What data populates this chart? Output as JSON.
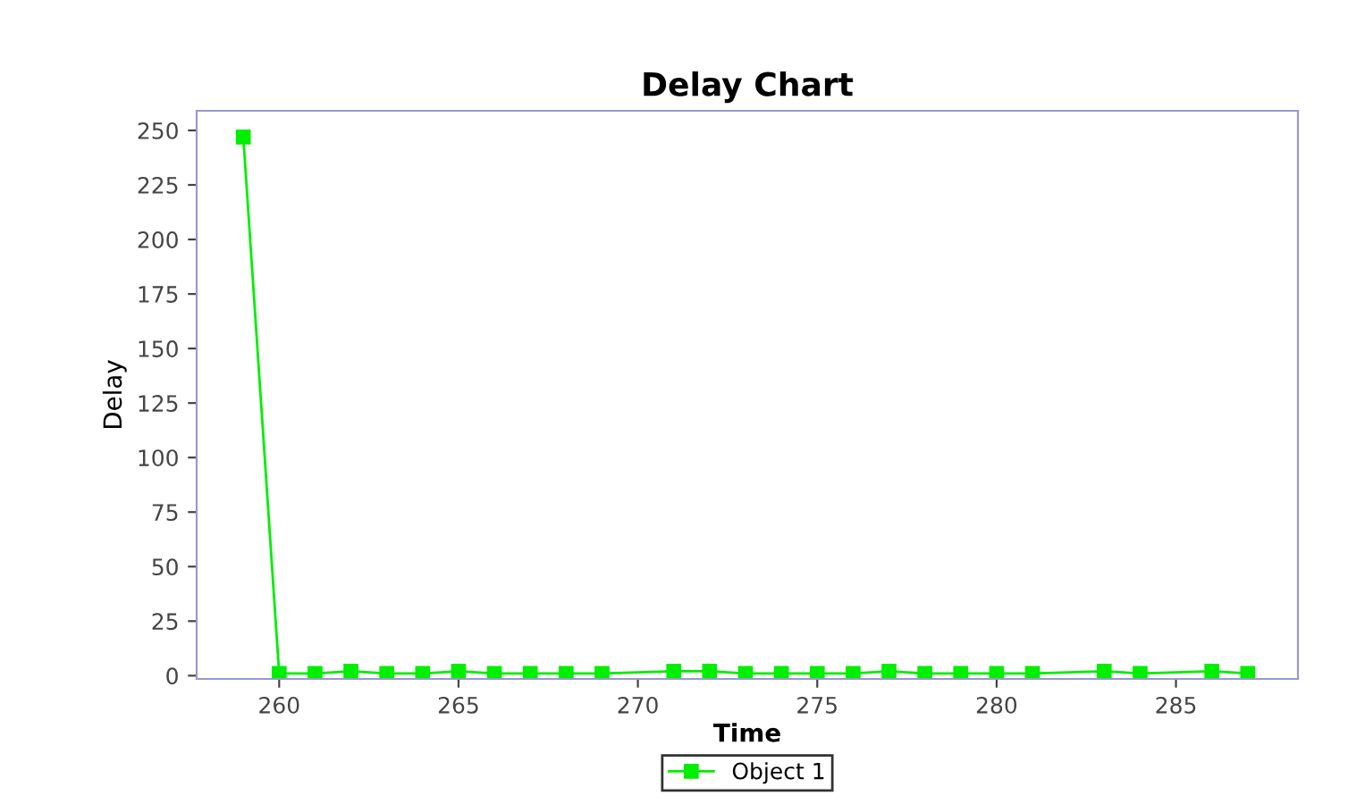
{
  "chart_data": {
    "type": "line",
    "title": "Delay Chart",
    "xlabel": "Time",
    "ylabel": "Delay",
    "x": [
      259,
      260,
      261,
      262,
      263,
      264,
      265,
      266,
      267,
      268,
      269,
      271,
      272,
      273,
      274,
      275,
      276,
      277,
      278,
      279,
      280,
      281,
      283,
      284,
      286,
      287
    ],
    "series": [
      {
        "name": "Object 1",
        "color": "#00ee00",
        "values": [
          247,
          1,
          1,
          2,
          1,
          1,
          2,
          1,
          1,
          1,
          1,
          2,
          2,
          1,
          1,
          1,
          1,
          2,
          1,
          1,
          1,
          1,
          2,
          1,
          2,
          1
        ]
      }
    ],
    "xlim": [
      257.7,
      288.4
    ],
    "xticks": [
      260,
      265,
      270,
      275,
      280,
      285
    ],
    "ylim": [
      -1.5,
      259
    ],
    "yticks": [
      0,
      25,
      50,
      75,
      100,
      125,
      150,
      175,
      200,
      225,
      250
    ],
    "marker": "square",
    "line_style": "solid",
    "grid": false,
    "legend": "bottom"
  }
}
